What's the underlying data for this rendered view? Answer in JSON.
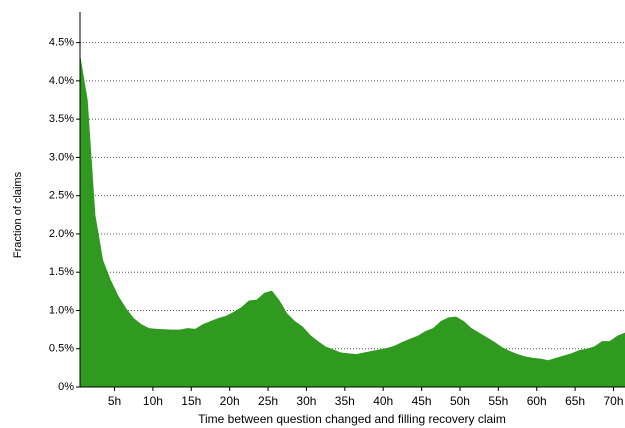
{
  "chart_data": {
    "type": "area",
    "xlabel": "Time between question changed and filling recovery claim",
    "ylabel": "Fraction of claims",
    "color": "#2f9a1f",
    "grid": true,
    "x": [
      0.5,
      1.5,
      2.5,
      3.5,
      4.5,
      5.5,
      6.5,
      7.5,
      8.5,
      9.5,
      10.5,
      11.5,
      12.5,
      13.5,
      14.5,
      15.5,
      16.5,
      17.5,
      18.5,
      19.5,
      20.5,
      21.5,
      22.5,
      23.5,
      24.5,
      25.5,
      26.5,
      27.5,
      28.5,
      29.5,
      30.5,
      31.5,
      32.5,
      33.5,
      34.5,
      35.5,
      36.5,
      37.5,
      38.5,
      39.5,
      40.5,
      41.5,
      42.5,
      43.5,
      44.5,
      45.5,
      46.5,
      47.5,
      48.5,
      49.5,
      50.5,
      51.5,
      52.5,
      53.5,
      54.5,
      55.5,
      56.5,
      57.5,
      58.5,
      59.5,
      60.5,
      61.5,
      62.5,
      63.5,
      64.5,
      65.5,
      66.5,
      67.5,
      68.5,
      69.5,
      70.5,
      71.5
    ],
    "values": [
      4.35,
      3.75,
      2.25,
      1.66,
      1.4,
      1.19,
      1.03,
      0.9,
      0.82,
      0.77,
      0.76,
      0.755,
      0.75,
      0.75,
      0.77,
      0.76,
      0.82,
      0.86,
      0.9,
      0.93,
      0.98,
      1.04,
      1.13,
      1.14,
      1.23,
      1.26,
      1.13,
      0.96,
      0.86,
      0.79,
      0.68,
      0.6,
      0.53,
      0.49,
      0.45,
      0.44,
      0.43,
      0.45,
      0.47,
      0.49,
      0.51,
      0.54,
      0.59,
      0.63,
      0.67,
      0.73,
      0.77,
      0.86,
      0.91,
      0.92,
      0.86,
      0.77,
      0.71,
      0.65,
      0.59,
      0.52,
      0.47,
      0.43,
      0.4,
      0.38,
      0.37,
      0.35,
      0.38,
      0.41,
      0.44,
      0.48,
      0.5,
      0.53,
      0.6,
      0.6,
      0.67,
      0.71
    ],
    "xlim": [
      0.5,
      71.5
    ],
    "ylim": [
      0,
      4.9
    ],
    "xticks": [
      {
        "value": 5,
        "label": "5h"
      },
      {
        "value": 10,
        "label": "10h"
      },
      {
        "value": 15,
        "label": "15h"
      },
      {
        "value": 20,
        "label": "20h"
      },
      {
        "value": 25,
        "label": "25h"
      },
      {
        "value": 30,
        "label": "30h"
      },
      {
        "value": 35,
        "label": "35h"
      },
      {
        "value": 40,
        "label": "40h"
      },
      {
        "value": 45,
        "label": "45h"
      },
      {
        "value": 50,
        "label": "50h"
      },
      {
        "value": 55,
        "label": "55h"
      },
      {
        "value": 60,
        "label": "60h"
      },
      {
        "value": 65,
        "label": "65h"
      },
      {
        "value": 70,
        "label": "70h"
      }
    ],
    "yticks": [
      {
        "value": 0,
        "label": "0%"
      },
      {
        "value": 0.5,
        "label": "0.5%"
      },
      {
        "value": 1.0,
        "label": "1.0%"
      },
      {
        "value": 1.5,
        "label": "1.5%"
      },
      {
        "value": 2.0,
        "label": "2.0%"
      },
      {
        "value": 2.5,
        "label": "2.5%"
      },
      {
        "value": 3.0,
        "label": "3.0%"
      },
      {
        "value": 3.5,
        "label": "3.5%"
      },
      {
        "value": 4.0,
        "label": "4.0%"
      },
      {
        "value": 4.5,
        "label": "4.5%"
      }
    ]
  }
}
